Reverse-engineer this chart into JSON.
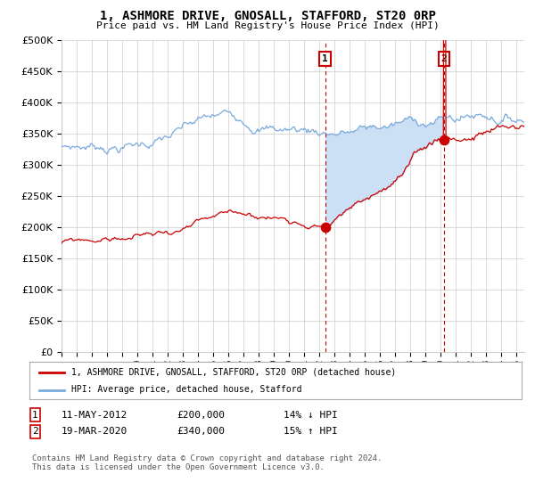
{
  "title": "1, ASHMORE DRIVE, GNOSALL, STAFFORD, ST20 0RP",
  "subtitle": "Price paid vs. HM Land Registry's House Price Index (HPI)",
  "legend_line1": "1, ASHMORE DRIVE, GNOSALL, STAFFORD, ST20 0RP (detached house)",
  "legend_line2": "HPI: Average price, detached house, Stafford",
  "footnote": "Contains HM Land Registry data © Crown copyright and database right 2024.\nThis data is licensed under the Open Government Licence v3.0.",
  "transaction1": {
    "label": "1",
    "date": "11-MAY-2012",
    "price": 200000,
    "hpi_diff": "14% ↓ HPI",
    "year": 2012.37
  },
  "transaction2": {
    "label": "2",
    "date": "19-MAR-2020",
    "price": 340000,
    "hpi_diff": "15% ↑ HPI",
    "year": 2020.21
  },
  "hpi_color": "#7aaadd",
  "price_color": "#cc0000",
  "shade_color": "#cce0f5",
  "plot_bg": "#ffffff",
  "grid_color": "#cccccc",
  "y_min": 0,
  "y_max": 500000,
  "x_min": 1995.0,
  "x_max": 2025.5
}
